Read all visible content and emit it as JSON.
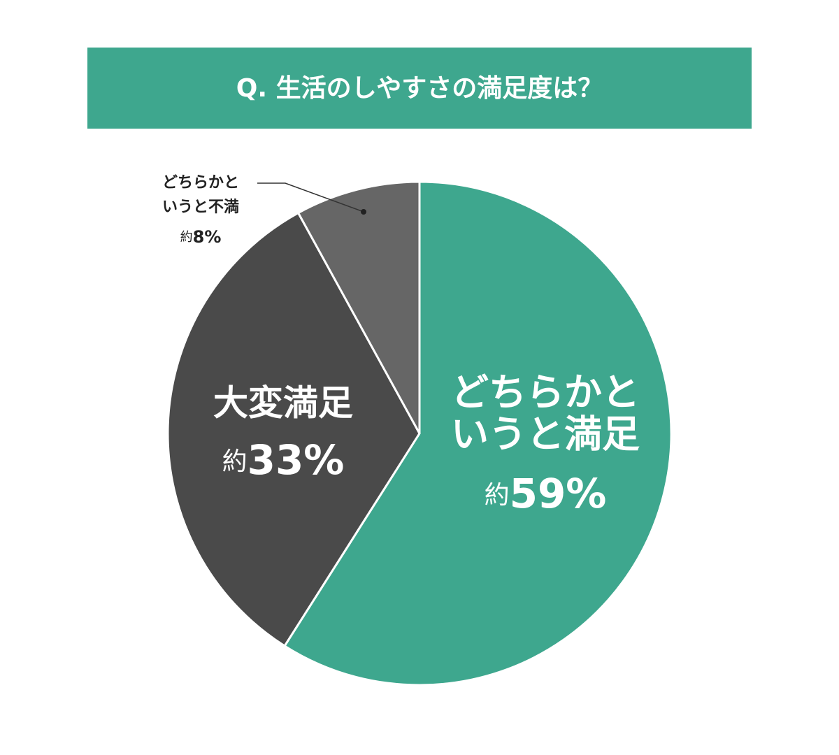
{
  "chart_data": {
    "type": "pie",
    "title": "Q. 生活のしやすさの満足度は？",
    "categories": [
      [
        "どちらかと",
        "いうと満足"
      ],
      [
        "大変満足"
      ],
      [
        "どちらかと",
        "いうと不満"
      ]
    ],
    "values": [
      59,
      33,
      8
    ],
    "value_labels": [
      "約59%",
      "約33%",
      "約8%"
    ],
    "colors": [
      "#3ea78e",
      "#4a4a4a",
      "#666666"
    ]
  }
}
